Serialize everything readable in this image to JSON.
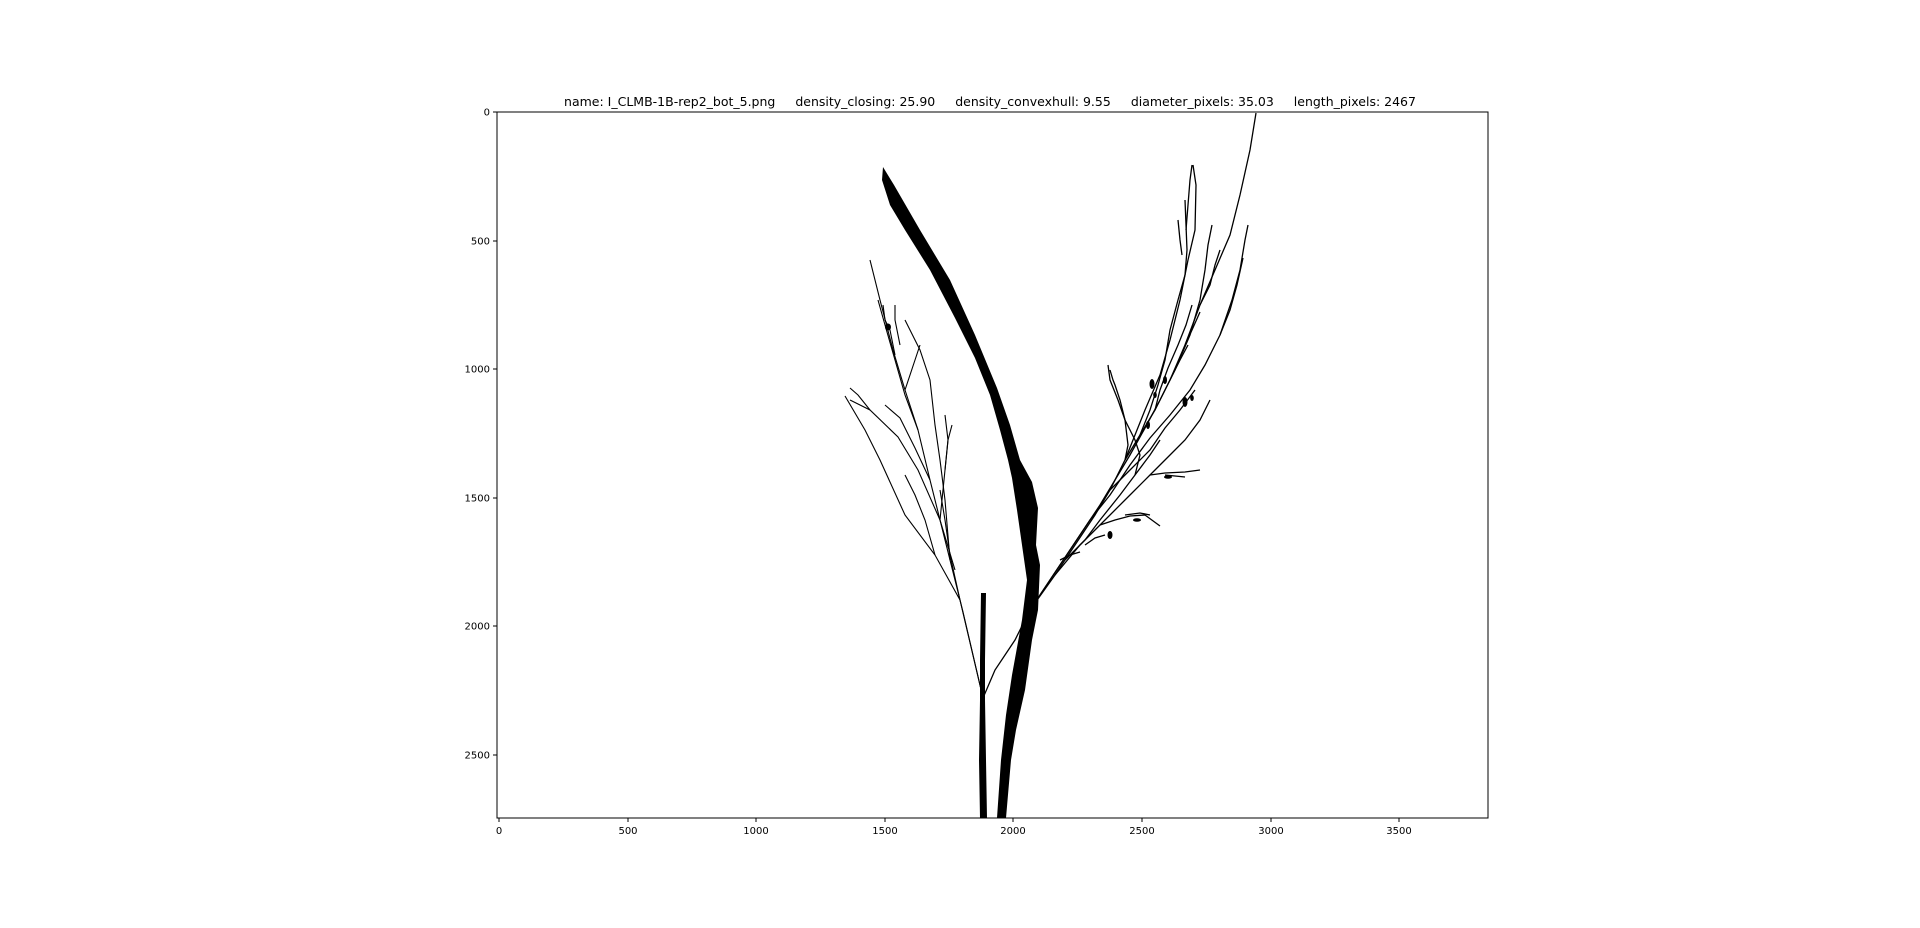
{
  "title": {
    "name": "name: I_CLMB-1B-rep2_bot_5.png",
    "density_closing": "density_closing: 25.90",
    "density_convexhull": "density_convexhull: 9.55",
    "diameter_pixels": "diameter_pixels: 35.03",
    "length_pixels": "length_pixels: 2467"
  },
  "axes": {
    "x_ticks": [
      "0",
      "500",
      "1000",
      "1500",
      "2000",
      "2500",
      "3000",
      "3500"
    ],
    "y_ticks": [
      "0",
      "500",
      "1000",
      "1500",
      "2000",
      "2500"
    ],
    "x_range": [
      0,
      3840
    ],
    "y_range": [
      0,
      2750
    ]
  },
  "colors": {
    "frame": "#000000",
    "plant": "#000000",
    "background": "#ffffff"
  },
  "image": {
    "subject": "binary plant silhouette"
  }
}
